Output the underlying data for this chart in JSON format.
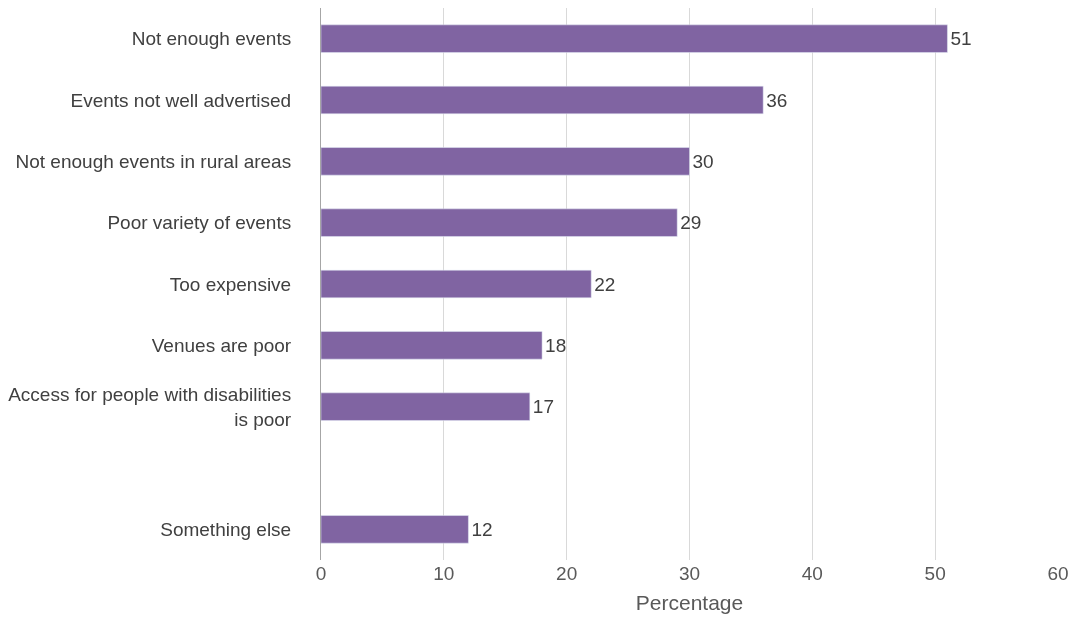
{
  "chart_data": {
    "type": "bar",
    "orientation": "horizontal",
    "xlabel": "Percentage",
    "categories": [
      "Not enough events",
      "Events not well advertised",
      "Not enough events in rural areas",
      "Poor variety of events",
      "Too expensive",
      "Venues are poor",
      "Access for people with disabilities is poor",
      null,
      "Something else"
    ],
    "values": [
      51,
      36,
      30,
      29,
      22,
      18,
      17,
      null,
      12
    ],
    "color": "#8064a2",
    "xlim": [
      0,
      60
    ],
    "xticks": [
      0,
      10,
      20,
      30,
      40,
      50,
      60
    ],
    "grid": "x",
    "legend": false,
    "data_labels": true
  }
}
